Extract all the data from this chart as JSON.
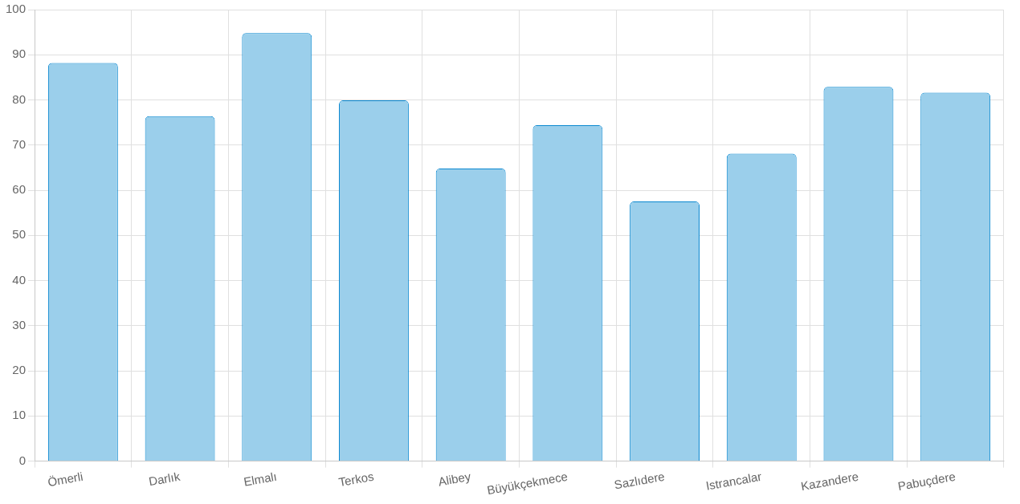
{
  "chart_data": {
    "type": "bar",
    "categories": [
      "Ömerli",
      "Darlık",
      "Elmalı",
      "Terkos",
      "Alibey",
      "Büyükçekmece",
      "Sazlıdere",
      "Istrancalar",
      "Kazandere",
      "Pabuçdere"
    ],
    "values": [
      88.2,
      76.4,
      94.8,
      79.9,
      64.8,
      74.4,
      57.5,
      68.1,
      82.9,
      81.6
    ],
    "color": "#9bcfeb",
    "ylim": [
      0,
      100
    ],
    "yticks": [
      0,
      10,
      20,
      30,
      40,
      50,
      60,
      70,
      80,
      90,
      100
    ],
    "grid": true
  }
}
